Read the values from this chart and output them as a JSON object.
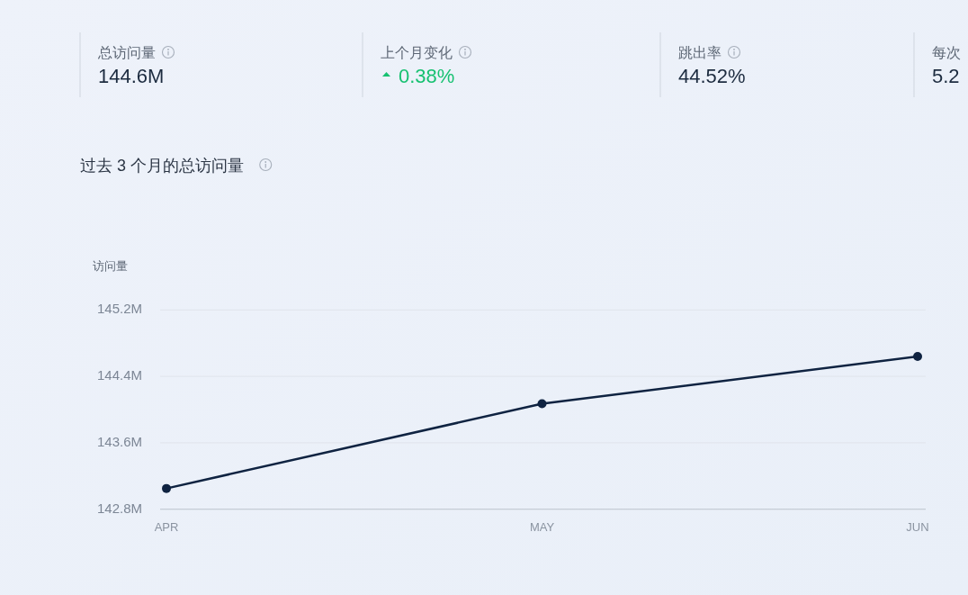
{
  "chart_data": [
    {
      "type": "other",
      "categories": [
        "总访问量",
        "上个月变化",
        "跳出率",
        "每次"
      ],
      "value_labels": [
        "144.6M",
        "0.38%",
        "44.52%",
        "5.2"
      ],
      "colors": [
        "#1c2b3f",
        "#17c171",
        "#1c2b3f",
        "#1c2b3f"
      ]
    },
    {
      "type": "line",
      "title": "过去 3 个月的总访问量",
      "ylabel": "访问量",
      "categories": [
        "APR",
        "MAY",
        "JUN"
      ],
      "series": [
        {
          "color": "#0f2341",
          "values": [
            143.05,
            144.07,
            144.64
          ]
        }
      ],
      "ylim": [
        142.8,
        145.2
      ],
      "yticks": [
        {
          "value": 142.8,
          "label": "142.8M"
        },
        {
          "value": 143.6,
          "label": "143.6M"
        },
        {
          "value": 144.4,
          "label": "144.4M"
        },
        {
          "value": 145.2,
          "label": "145.2M"
        }
      ],
      "grid": "y",
      "marker": "circle"
    }
  ]
}
